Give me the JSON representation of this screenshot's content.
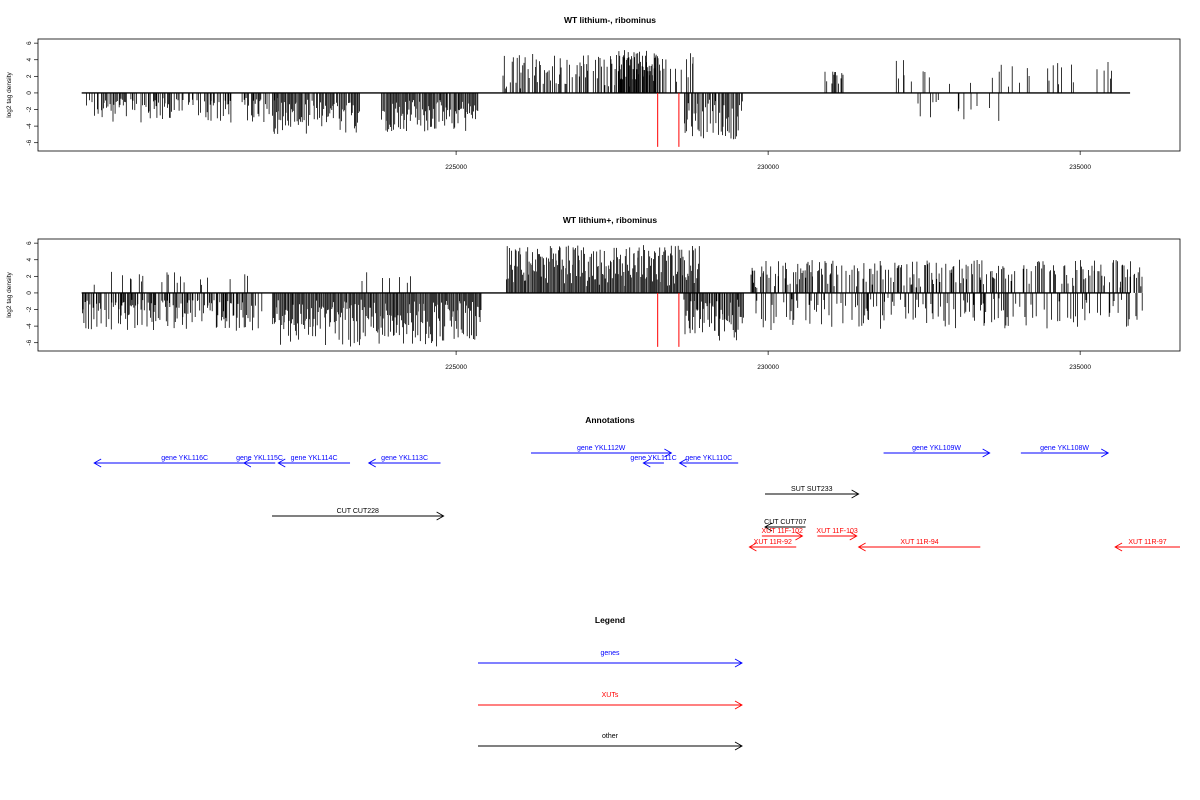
{
  "chart_data": [
    {
      "type": "bar",
      "title": "WT lithium-, ribominus",
      "ylabel": "log2 tag density",
      "ylim": [
        -7,
        6.5
      ],
      "xlim": [
        218300,
        236600
      ],
      "yticks": [
        -6,
        -4,
        -2,
        0,
        2,
        4,
        6
      ],
      "xticks": [
        225000,
        230000,
        235000
      ],
      "grid": false,
      "baseline": [
        219000,
        235800
      ],
      "highlight_lines": [
        {
          "x": 228230,
          "y": -6.5,
          "color": "#ff0000"
        },
        {
          "x": 228570,
          "y": -6.5,
          "color": "#ff0000"
        }
      ],
      "segments": [
        {
          "x0": 219050,
          "x1": 222000,
          "density": 0.55,
          "ymin": -3.6,
          "ymax": -0.6
        },
        {
          "x0": 221000,
          "x1": 222150,
          "density": 0.12,
          "ymin": -1.5,
          "ymax": -0.6
        },
        {
          "x0": 222050,
          "x1": 223450,
          "density": 0.9,
          "ymin": -5.0,
          "ymax": -0.8
        },
        {
          "x0": 223800,
          "x1": 225350,
          "density": 0.95,
          "ymin": -4.8,
          "ymax": -0.8
        },
        {
          "x0": 225750,
          "x1": 228800,
          "density": 0.6,
          "ymin": 0.5,
          "ymax": 4.8
        },
        {
          "x0": 227600,
          "x1": 228200,
          "density": 1.0,
          "ymin": 1.5,
          "ymax": 5.2
        },
        {
          "x0": 228650,
          "x1": 229600,
          "density": 0.8,
          "ymin": -5.6,
          "ymax": -0.8
        },
        {
          "x0": 230900,
          "x1": 231200,
          "density": 0.35,
          "ymin": 0.8,
          "ymax": 2.6
        },
        {
          "x0": 232000,
          "x1": 235500,
          "density": 0.14,
          "ymin": 0.6,
          "ymax": 4.0
        },
        {
          "x0": 232300,
          "x1": 233700,
          "density": 0.1,
          "ymin": -3.4,
          "ymax": -0.8
        }
      ]
    },
    {
      "type": "bar",
      "title": "WT lithium+, ribominus",
      "ylabel": "log2 tag density",
      "ylim": [
        -7,
        6.5
      ],
      "xlim": [
        218300,
        236600
      ],
      "yticks": [
        -6,
        -4,
        -2,
        0,
        2,
        4,
        6
      ],
      "xticks": [
        225000,
        230000,
        235000
      ],
      "grid": false,
      "baseline": [
        219000,
        235800
      ],
      "highlight_lines": [
        {
          "x": 228230,
          "y": -6.5,
          "color": "#ff0000"
        },
        {
          "x": 228570,
          "y": -6.5,
          "color": "#ff0000"
        }
      ],
      "segments": [
        {
          "x0": 219000,
          "x1": 221900,
          "density": 0.8,
          "ymin": -4.8,
          "ymax": -0.8
        },
        {
          "x0": 219000,
          "x1": 221900,
          "density": 0.12,
          "ymin": 0.6,
          "ymax": 2.6
        },
        {
          "x0": 222050,
          "x1": 225400,
          "density": 1.2,
          "ymin": -6.5,
          "ymax": -0.8
        },
        {
          "x0": 223400,
          "x1": 224600,
          "density": 0.12,
          "ymin": 0.8,
          "ymax": 2.5
        },
        {
          "x0": 225800,
          "x1": 228900,
          "density": 1.5,
          "ymin": 0.8,
          "ymax": 5.8
        },
        {
          "x0": 228650,
          "x1": 229600,
          "density": 1.0,
          "ymin": -5.8,
          "ymax": -0.8
        },
        {
          "x0": 229700,
          "x1": 236000,
          "density": 0.5,
          "ymin": 0.6,
          "ymax": 4.0
        },
        {
          "x0": 229700,
          "x1": 236000,
          "density": 0.35,
          "ymin": -4.6,
          "ymax": -0.6
        }
      ]
    }
  ],
  "annotations": {
    "title": "Annotations",
    "features": [
      {
        "label": "gene YKL116C",
        "color": "#0000ff",
        "dir": "left",
        "x0": 219200,
        "x1": 222100,
        "row": 1
      },
      {
        "label": "gene YKL115C",
        "color": "#0000ff",
        "dir": "left",
        "x0": 221600,
        "x1": 222100,
        "row": 1
      },
      {
        "label": "gene YKL114C",
        "color": "#0000ff",
        "dir": "left",
        "x0": 222150,
        "x1": 223300,
        "row": 1
      },
      {
        "label": "gene YKL113C",
        "color": "#0000ff",
        "dir": "left",
        "x0": 223600,
        "x1": 224750,
        "row": 1
      },
      {
        "label": "gene YKL112W",
        "color": "#0000ff",
        "dir": "right",
        "x0": 226200,
        "x1": 228450,
        "row": 0
      },
      {
        "label": "gene YKL111C",
        "color": "#0000ff",
        "dir": "left",
        "x0": 228000,
        "x1": 228330,
        "row": 1
      },
      {
        "label": "gene YKL110C",
        "color": "#0000ff",
        "dir": "left",
        "x0": 228580,
        "x1": 229520,
        "row": 1
      },
      {
        "label": "gene YKL109W",
        "color": "#0000ff",
        "dir": "right",
        "x0": 231850,
        "x1": 233550,
        "row": 0
      },
      {
        "label": "gene YKL108W",
        "color": "#0000ff",
        "dir": "right",
        "x0": 234050,
        "x1": 235450,
        "row": 0
      },
      {
        "label": "SUT SUT233",
        "color": "#000000",
        "dir": "right",
        "x0": 229950,
        "x1": 231450,
        "row": 3
      },
      {
        "label": "CUT CUT228",
        "color": "#000000",
        "dir": "right",
        "x0": 222050,
        "x1": 224800,
        "row": 5
      },
      {
        "label": "CUT CUT707",
        "color": "#000000",
        "dir": "left",
        "x0": 229950,
        "x1": 230600,
        "row": 6
      },
      {
        "label": "XUT 11F-102",
        "color": "#ff0000",
        "dir": "right",
        "x0": 229900,
        "x1": 230550,
        "row": 7
      },
      {
        "label": "XUT 11F-103",
        "color": "#ff0000",
        "dir": "right",
        "x0": 230790,
        "x1": 231420,
        "row": 7
      },
      {
        "label": "XUT 11R-92",
        "color": "#ff0000",
        "dir": "left",
        "x0": 229700,
        "x1": 230450,
        "row": 8
      },
      {
        "label": "XUT 11R-94",
        "color": "#ff0000",
        "dir": "left",
        "x0": 231450,
        "x1": 233400,
        "row": 8
      },
      {
        "label": "XUT 11R-97",
        "color": "#ff0000",
        "dir": "left",
        "x0": 235560,
        "x1": 236600,
        "row": 8
      }
    ]
  },
  "legend": {
    "title": "Legend",
    "items": [
      {
        "label": "genes",
        "color": "#0000ff"
      },
      {
        "label": "XUTs",
        "color": "#ff0000"
      },
      {
        "label": "other",
        "color": "#000000"
      }
    ]
  }
}
